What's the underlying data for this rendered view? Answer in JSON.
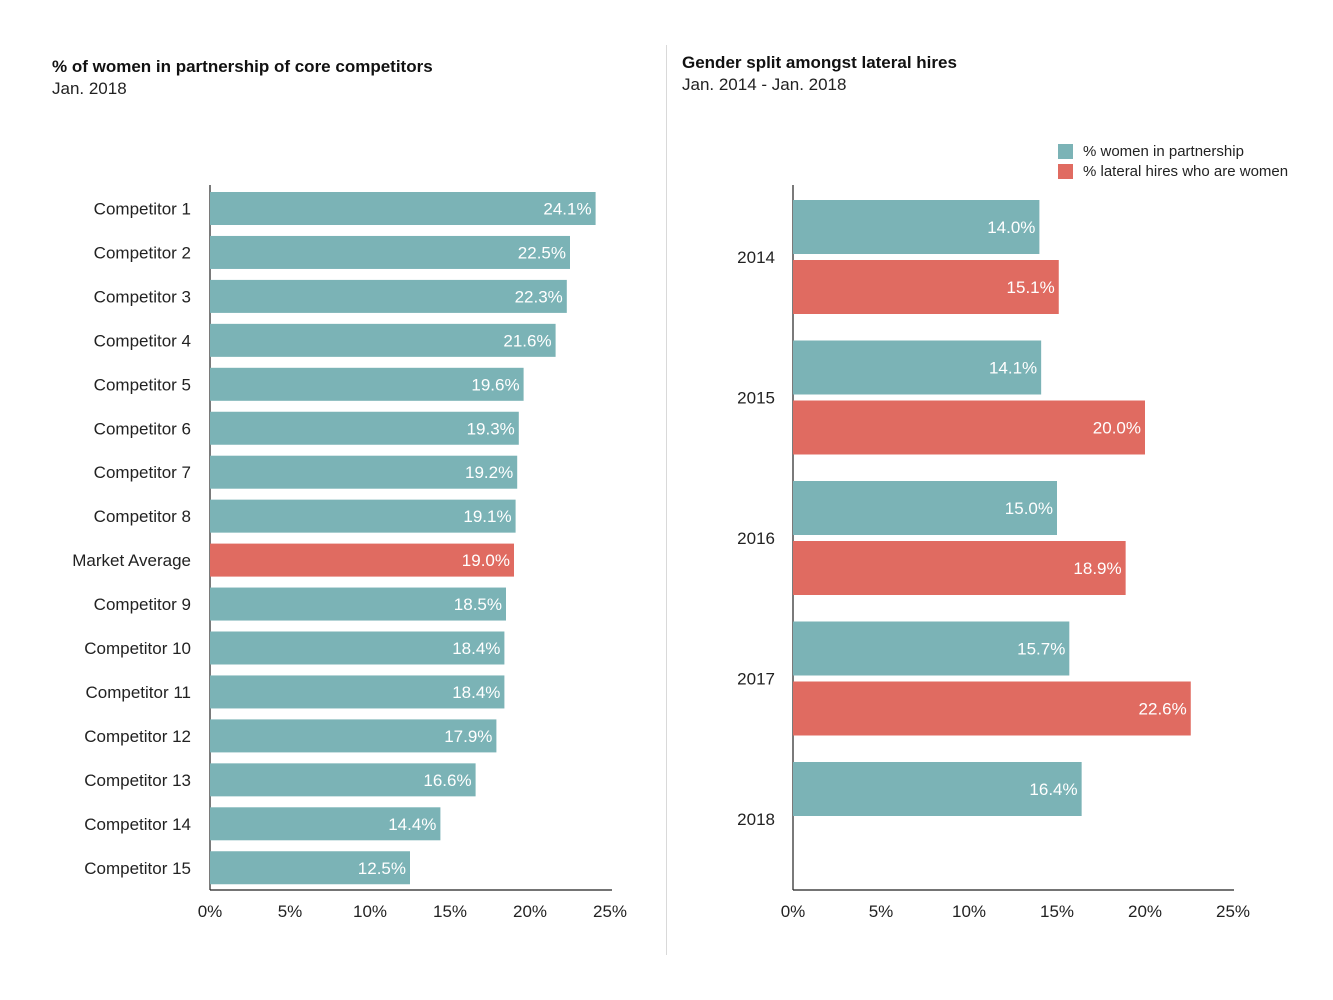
{
  "colors": {
    "teal": "#7bb3b6",
    "red": "#e06b61",
    "axis": "#222222"
  },
  "chart_data": [
    {
      "type": "bar",
      "orientation": "horizontal",
      "title": "% of women in partnership of core competitors",
      "subtitle": "Jan. 2018",
      "categories": [
        "Competitor 1",
        "Competitor 2",
        "Competitor 3",
        "Competitor 4",
        "Competitor 5",
        "Competitor 6",
        "Competitor 7",
        "Competitor 8",
        "Market Average",
        "Competitor 9",
        "Competitor 10",
        "Competitor 11",
        "Competitor 12",
        "Competitor 13",
        "Competitor 14",
        "Competitor 15"
      ],
      "values": [
        24.1,
        22.5,
        22.3,
        21.6,
        19.6,
        19.3,
        19.2,
        19.1,
        19.0,
        18.5,
        18.4,
        18.4,
        17.9,
        16.6,
        14.4,
        12.5
      ],
      "value_labels": [
        "24.1%",
        "22.5%",
        "22.3%",
        "21.6%",
        "19.6%",
        "19.3%",
        "19.2%",
        "19.1%",
        "19.0%",
        "18.5%",
        "18.4%",
        "18.4%",
        "17.9%",
        "16.6%",
        "14.4%",
        "12.5%"
      ],
      "highlight_category": "Market Average",
      "xlim": [
        0,
        25
      ],
      "xticks": [
        "0%",
        "5%",
        "10%",
        "15%",
        "20%",
        "25%"
      ],
      "grid": false
    },
    {
      "type": "bar",
      "orientation": "horizontal",
      "title": "Gender split amongst lateral hires",
      "subtitle": "Jan. 2014 - Jan. 2018",
      "categories": [
        "2014",
        "2015",
        "2016",
        "2017",
        "2018"
      ],
      "series": [
        {
          "name": "% women in partnership",
          "color": "#7bb3b6",
          "values": [
            14.0,
            14.1,
            15.0,
            15.7,
            16.4
          ],
          "value_labels": [
            "14.0%",
            "14.1%",
            "15.0%",
            "15.7%",
            "16.4%"
          ]
        },
        {
          "name": "% lateral hires who are women",
          "color": "#e06b61",
          "values": [
            15.1,
            20.0,
            18.9,
            22.6,
            null
          ],
          "value_labels": [
            "15.1%",
            "20.0%",
            "18.9%",
            "22.6%",
            null
          ]
        }
      ],
      "xlim": [
        0,
        25
      ],
      "xticks": [
        "0%",
        "5%",
        "10%",
        "15%",
        "20%",
        "25%"
      ],
      "legend_position": "top-right",
      "grid": false
    }
  ]
}
